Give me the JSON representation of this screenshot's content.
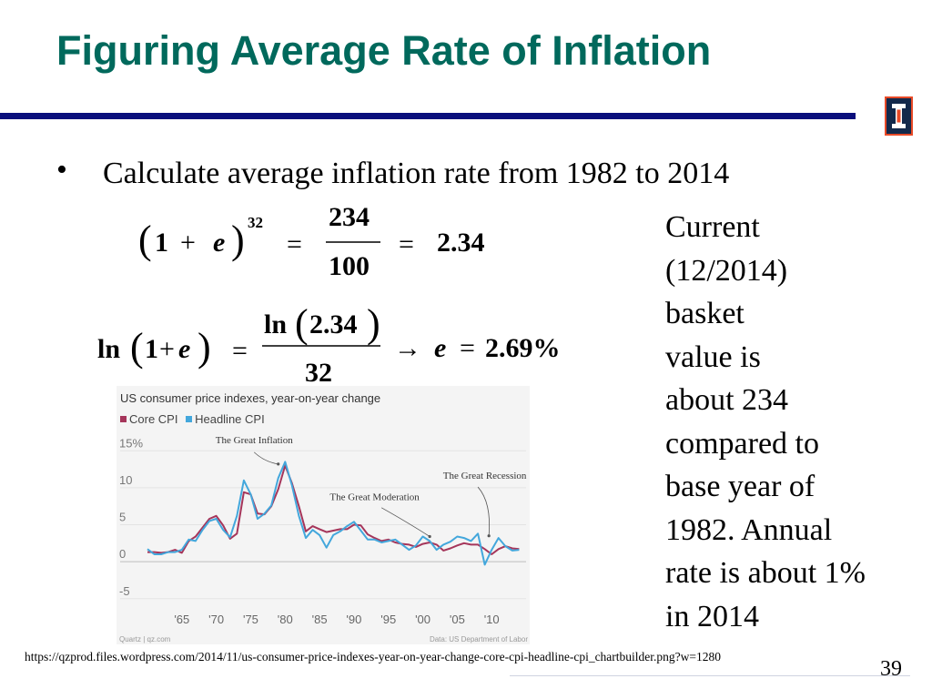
{
  "slide": {
    "title": "Figuring Average Rate of Inflation",
    "bullet": "Calculate average inflation rate from 1982 to 2014",
    "formula1": {
      "lhs_one": "1",
      "plus": "+",
      "var": "e",
      "exponent": "32",
      "equals": "=",
      "numerator": "234",
      "denominator": "100",
      "result": "2.34"
    },
    "formula2": {
      "ln": "ln",
      "one": "1",
      "plus": "+",
      "var": "e",
      "equals": "=",
      "num_value": "2.34",
      "denominator": "32",
      "arrow": "→",
      "result": "2.69%"
    },
    "side_note_lines": [
      "Current",
      "(12/2014)",
      "basket",
      "value is",
      "about 234",
      "compared to",
      "base year of",
      "1982.  Annual",
      "rate is about 1%",
      "in 2014"
    ],
    "source_url": "https://qzprod.files.wordpress.com/2014/11/us-consumer-price-indexes-year-on-year-change-core-cpi-headline-cpi_chartbuilder.png?w=1280",
    "page_number": "39"
  },
  "chart_data": {
    "type": "line",
    "title": "US consumer price indexes, year-on-year change",
    "y_tick_labels": [
      "15%",
      "10",
      "5",
      "0",
      "-5"
    ],
    "y_ticks": [
      15,
      10,
      5,
      0,
      -5
    ],
    "ylim": [
      -7,
      17
    ],
    "x_tick_labels": [
      "'65",
      "'70",
      "'75",
      "'80",
      "'85",
      "'90",
      "'95",
      "'00",
      "'05",
      "'10"
    ],
    "x_ticks": [
      1965,
      1970,
      1975,
      1980,
      1985,
      1990,
      1995,
      2000,
      2005,
      2010
    ],
    "xlim": [
      1960,
      2015
    ],
    "annotations": [
      {
        "text": "The Great Inflation",
        "x": 1975.5,
        "y": 16
      },
      {
        "text": "The Great Moderation",
        "x": 1993,
        "y": 8.3
      },
      {
        "text": "The Great Recession",
        "x": 2009,
        "y": 11.2
      }
    ],
    "credit_left": "Quartz | qz.com",
    "credit_right": "Data: US Department of Labor",
    "series": [
      {
        "name": "Core CPI",
        "color": "#a5355a",
        "x": [
          1960,
          1961,
          1962,
          1963,
          1964,
          1965,
          1966,
          1967,
          1968,
          1969,
          1970,
          1971,
          1972,
          1973,
          1974,
          1975,
          1976,
          1977,
          1978,
          1979,
          1980,
          1981,
          1982,
          1983,
          1984,
          1985,
          1986,
          1987,
          1988,
          1989,
          1990,
          1991,
          1992,
          1993,
          1994,
          1995,
          1996,
          1997,
          1998,
          1999,
          2000,
          2001,
          2002,
          2003,
          2004,
          2005,
          2006,
          2007,
          2008,
          2009,
          2010,
          2011,
          2012,
          2013,
          2014
        ],
        "values": [
          1.3,
          1.3,
          1.2,
          1.3,
          1.6,
          1.2,
          2.8,
          3.4,
          4.6,
          5.8,
          6.2,
          4.9,
          3.1,
          3.8,
          9.4,
          9.1,
          6.5,
          6.4,
          7.5,
          9.8,
          13.0,
          10.6,
          7.5,
          4.1,
          4.8,
          4.4,
          4.0,
          4.2,
          4.4,
          4.4,
          5.0,
          4.9,
          3.7,
          3.2,
          2.8,
          3.0,
          2.6,
          2.4,
          2.3,
          2.0,
          2.4,
          2.6,
          2.3,
          1.5,
          1.8,
          2.2,
          2.5,
          2.3,
          2.3,
          1.7,
          1.0,
          1.7,
          2.1,
          1.8,
          1.7
        ]
      },
      {
        "name": "Headline CPI",
        "color": "#43a7dc",
        "x": [
          1960,
          1961,
          1962,
          1963,
          1964,
          1965,
          1966,
          1967,
          1968,
          1969,
          1970,
          1971,
          1972,
          1973,
          1974,
          1975,
          1976,
          1977,
          1978,
          1979,
          1980,
          1981,
          1982,
          1983,
          1984,
          1985,
          1986,
          1987,
          1988,
          1989,
          1990,
          1991,
          1992,
          1993,
          1994,
          1995,
          1996,
          1997,
          1998,
          1999,
          2000,
          2001,
          2002,
          2003,
          2004,
          2005,
          2006,
          2007,
          2008,
          2009,
          2010,
          2011,
          2012,
          2013,
          2014
        ],
        "values": [
          1.7,
          1.0,
          1.0,
          1.3,
          1.3,
          1.6,
          3.0,
          2.8,
          4.3,
          5.5,
          5.8,
          4.3,
          3.3,
          6.2,
          11.0,
          9.1,
          5.8,
          6.5,
          7.6,
          11.3,
          13.5,
          10.3,
          6.2,
          3.2,
          4.3,
          3.6,
          1.9,
          3.6,
          4.1,
          4.8,
          5.4,
          4.2,
          3.0,
          3.0,
          2.6,
          2.8,
          3.0,
          2.3,
          1.6,
          2.2,
          3.4,
          2.8,
          1.6,
          2.3,
          2.7,
          3.4,
          3.2,
          2.8,
          3.8,
          -0.4,
          1.6,
          3.2,
          2.1,
          1.5,
          1.6
        ]
      }
    ]
  }
}
